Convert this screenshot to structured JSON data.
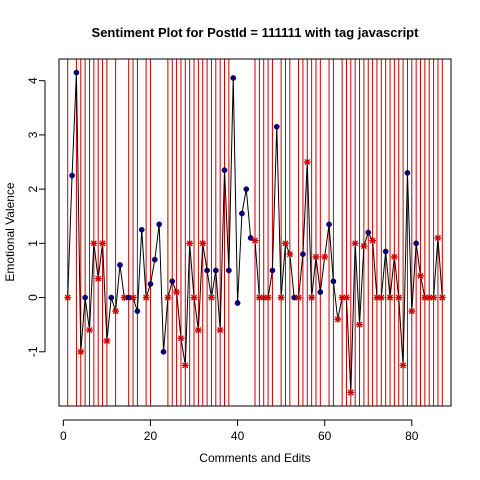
{
  "chart_data": {
    "type": "line",
    "title": "Sentiment Plot for PostId =  111111  with tag  javascript",
    "xlabel": "Comments and Edits",
    "ylabel": "Emotional Valence",
    "xlim": [
      -1,
      89
    ],
    "ylim": [
      -2,
      4.4
    ],
    "xticks": [
      0,
      20,
      40,
      60,
      80
    ],
    "yticks": [
      -1,
      0,
      1,
      2,
      3,
      4
    ],
    "colors": {
      "line": "#000000",
      "comment": "#00008b",
      "edit": "#cc0000",
      "vline": "#cc0000"
    },
    "edit_vlines": [
      1,
      3,
      4,
      5,
      6,
      7,
      8,
      9,
      10,
      12,
      15,
      16,
      17,
      19,
      20,
      24,
      25,
      26,
      27,
      28,
      29,
      30,
      31,
      32,
      33,
      34,
      35,
      36,
      37,
      38,
      44,
      45,
      46,
      47,
      48,
      50,
      51,
      52,
      54,
      55,
      56,
      57,
      58,
      59,
      61,
      62,
      64,
      65,
      66,
      67,
      68,
      69,
      70,
      71,
      72,
      73,
      74,
      75,
      76,
      77,
      78,
      79,
      80,
      81,
      82,
      83,
      84,
      85,
      86,
      87
    ],
    "points": [
      {
        "x": 1,
        "y": 0,
        "type": "edit"
      },
      {
        "x": 2,
        "y": 2.25,
        "type": "comment"
      },
      {
        "x": 3,
        "y": 4.15,
        "type": "comment"
      },
      {
        "x": 4,
        "y": -1,
        "type": "edit"
      },
      {
        "x": 5,
        "y": 0,
        "type": "comment"
      },
      {
        "x": 6,
        "y": -0.6,
        "type": "edit"
      },
      {
        "x": 7,
        "y": 1,
        "type": "edit"
      },
      {
        "x": 8,
        "y": 0.35,
        "type": "edit"
      },
      {
        "x": 9,
        "y": 1,
        "type": "edit"
      },
      {
        "x": 10,
        "y": -0.8,
        "type": "edit"
      },
      {
        "x": 11,
        "y": 0,
        "type": "comment"
      },
      {
        "x": 12,
        "y": -0.25,
        "type": "edit"
      },
      {
        "x": 13,
        "y": 0.6,
        "type": "comment"
      },
      {
        "x": 14,
        "y": 0,
        "type": "edit"
      },
      {
        "x": 15,
        "y": 0,
        "type": "comment"
      },
      {
        "x": 16,
        "y": 0,
        "type": "edit"
      },
      {
        "x": 17,
        "y": -0.25,
        "type": "comment"
      },
      {
        "x": 18,
        "y": 1.25,
        "type": "comment"
      },
      {
        "x": 19,
        "y": 0,
        "type": "edit"
      },
      {
        "x": 20,
        "y": 0.25,
        "type": "comment"
      },
      {
        "x": 21,
        "y": 0.7,
        "type": "comment"
      },
      {
        "x": 22,
        "y": 1.35,
        "type": "comment"
      },
      {
        "x": 23,
        "y": -1,
        "type": "comment"
      },
      {
        "x": 24,
        "y": 0,
        "type": "edit"
      },
      {
        "x": 25,
        "y": 0.3,
        "type": "comment"
      },
      {
        "x": 26,
        "y": 0.1,
        "type": "edit"
      },
      {
        "x": 27,
        "y": -0.75,
        "type": "edit"
      },
      {
        "x": 28,
        "y": -1.25,
        "type": "edit"
      },
      {
        "x": 29,
        "y": 1,
        "type": "edit"
      },
      {
        "x": 30,
        "y": 0,
        "type": "edit"
      },
      {
        "x": 31,
        "y": -0.6,
        "type": "edit"
      },
      {
        "x": 32,
        "y": 1,
        "type": "edit"
      },
      {
        "x": 33,
        "y": 0.5,
        "type": "comment"
      },
      {
        "x": 34,
        "y": 0,
        "type": "edit"
      },
      {
        "x": 35,
        "y": 0.5,
        "type": "comment"
      },
      {
        "x": 36,
        "y": -0.6,
        "type": "edit"
      },
      {
        "x": 37,
        "y": 2.35,
        "type": "comment"
      },
      {
        "x": 38,
        "y": 0.5,
        "type": "comment"
      },
      {
        "x": 39,
        "y": 4.05,
        "type": "comment"
      },
      {
        "x": 40,
        "y": -0.1,
        "type": "comment"
      },
      {
        "x": 41,
        "y": 1.55,
        "type": "comment"
      },
      {
        "x": 42,
        "y": 2,
        "type": "comment"
      },
      {
        "x": 43,
        "y": 1.1,
        "type": "comment"
      },
      {
        "x": 44,
        "y": 1.05,
        "type": "edit"
      },
      {
        "x": 45,
        "y": 0,
        "type": "edit"
      },
      {
        "x": 46,
        "y": 0,
        "type": "edit"
      },
      {
        "x": 47,
        "y": 0,
        "type": "edit"
      },
      {
        "x": 48,
        "y": 0.5,
        "type": "comment"
      },
      {
        "x": 49,
        "y": 3.15,
        "type": "comment"
      },
      {
        "x": 50,
        "y": 0,
        "type": "edit"
      },
      {
        "x": 51,
        "y": 1,
        "type": "edit"
      },
      {
        "x": 52,
        "y": 0.8,
        "type": "edit"
      },
      {
        "x": 53,
        "y": 0,
        "type": "comment"
      },
      {
        "x": 54,
        "y": 0,
        "type": "edit"
      },
      {
        "x": 55,
        "y": 0.8,
        "type": "comment"
      },
      {
        "x": 56,
        "y": 2.5,
        "type": "edit"
      },
      {
        "x": 57,
        "y": 0,
        "type": "edit"
      },
      {
        "x": 58,
        "y": 0.75,
        "type": "edit"
      },
      {
        "x": 59,
        "y": 0.1,
        "type": "comment"
      },
      {
        "x": 60,
        "y": 0.75,
        "type": "edit"
      },
      {
        "x": 61,
        "y": 1.35,
        "type": "comment"
      },
      {
        "x": 62,
        "y": 0.3,
        "type": "comment"
      },
      {
        "x": 63,
        "y": -0.4,
        "type": "edit"
      },
      {
        "x": 64,
        "y": 0,
        "type": "edit"
      },
      {
        "x": 65,
        "y": 0,
        "type": "edit"
      },
      {
        "x": 66,
        "y": -1.75,
        "type": "edit"
      },
      {
        "x": 67,
        "y": 1,
        "type": "edit"
      },
      {
        "x": 68,
        "y": -0.5,
        "type": "edit"
      },
      {
        "x": 69,
        "y": 0.95,
        "type": "edit"
      },
      {
        "x": 70,
        "y": 1.2,
        "type": "comment"
      },
      {
        "x": 71,
        "y": 1.05,
        "type": "edit"
      },
      {
        "x": 72,
        "y": 0,
        "type": "edit"
      },
      {
        "x": 73,
        "y": 0,
        "type": "edit"
      },
      {
        "x": 74,
        "y": 0.85,
        "type": "comment"
      },
      {
        "x": 75,
        "y": 0,
        "type": "edit"
      },
      {
        "x": 76,
        "y": 0.75,
        "type": "edit"
      },
      {
        "x": 77,
        "y": 0,
        "type": "edit"
      },
      {
        "x": 78,
        "y": -1.25,
        "type": "edit"
      },
      {
        "x": 79,
        "y": 2.3,
        "type": "comment"
      },
      {
        "x": 80,
        "y": -0.25,
        "type": "edit"
      },
      {
        "x": 81,
        "y": 1,
        "type": "comment"
      },
      {
        "x": 82,
        "y": 0.4,
        "type": "edit"
      },
      {
        "x": 83,
        "y": 0,
        "type": "edit"
      },
      {
        "x": 84,
        "y": 0,
        "type": "edit"
      },
      {
        "x": 85,
        "y": 0,
        "type": "edit"
      },
      {
        "x": 86,
        "y": 1.1,
        "type": "edit"
      },
      {
        "x": 87,
        "y": 0,
        "type": "edit"
      }
    ]
  }
}
